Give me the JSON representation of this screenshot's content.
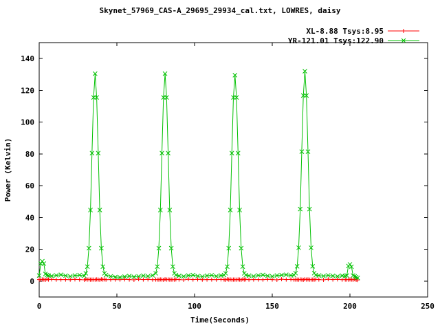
{
  "chart_data": {
    "type": "line",
    "title": "Skynet_57969_CAS-A_29695_29934_cal.txt, LOWRES, daisy",
    "xlabel": "Time(Seconds)",
    "ylabel": "Power (Kelvin)",
    "xlim": [
      0,
      250
    ],
    "ylim": [
      -10,
      150
    ],
    "x_ticks": [
      0,
      50,
      100,
      150,
      200,
      250
    ],
    "y_ticks": [
      0,
      20,
      40,
      60,
      80,
      100,
      120,
      140
    ],
    "grid": false,
    "legend_position": "top-right",
    "colors": {
      "background": "#ffffff",
      "border": "#000000",
      "text": "#000000"
    },
    "x": [
      0,
      1,
      2,
      3,
      4,
      5,
      6,
      8,
      11,
      14,
      17,
      20,
      23,
      26,
      29,
      30,
      31,
      32,
      33,
      34,
      35,
      36,
      37,
      38,
      39,
      40,
      41,
      42,
      43,
      46,
      49,
      52,
      55,
      58,
      61,
      64,
      67,
      70,
      73,
      75,
      76,
      77,
      78,
      79,
      80,
      81,
      82,
      83,
      84,
      85,
      86,
      87,
      88,
      90,
      93,
      96,
      99,
      102,
      105,
      108,
      111,
      114,
      117,
      119,
      120,
      121,
      122,
      123,
      124,
      125,
      126,
      127,
      128,
      129,
      130,
      131,
      132,
      133,
      135,
      138,
      141,
      144,
      147,
      150,
      153,
      156,
      159,
      162,
      164,
      165,
      166,
      167,
      168,
      169,
      170,
      171,
      172,
      173,
      174,
      175,
      176,
      177,
      178,
      180,
      183,
      186,
      189,
      192,
      195,
      197,
      198,
      199,
      200,
      201,
      202,
      203,
      204,
      205
    ],
    "series": [
      {
        "name": "XL-8.88 Tsys:8.95",
        "color": "#ff0000",
        "marker": "plus",
        "values": [
          1.0,
          0.9,
          1.1,
          1.0,
          0.8,
          1.2,
          1.0,
          1.1,
          0.9,
          1.0,
          1.0,
          0.9,
          1.1,
          1.0,
          0.8,
          1.2,
          1.0,
          1.1,
          0.9,
          1.0,
          1.0,
          0.9,
          1.1,
          1.0,
          0.8,
          1.2,
          1.0,
          1.1,
          0.9,
          1.0,
          1.0,
          0.9,
          1.1,
          1.0,
          0.8,
          1.2,
          1.0,
          1.1,
          0.9,
          1.0,
          1.0,
          0.9,
          1.1,
          1.0,
          0.8,
          1.2,
          1.0,
          1.1,
          0.9,
          1.0,
          1.0,
          0.9,
          1.1,
          1.0,
          0.8,
          1.2,
          1.0,
          1.1,
          0.9,
          1.0,
          1.0,
          0.9,
          1.1,
          1.0,
          0.8,
          1.2,
          1.0,
          1.1,
          0.9,
          1.0,
          1.0,
          0.9,
          1.1,
          1.0,
          0.8,
          1.2,
          1.0,
          1.1,
          0.9,
          1.0,
          1.0,
          0.9,
          1.1,
          1.0,
          0.8,
          1.2,
          1.0,
          1.1,
          0.9,
          1.0,
          1.0,
          0.9,
          1.1,
          1.0,
          0.8,
          1.2,
          1.0,
          1.1,
          0.9,
          1.0,
          1.0,
          0.9,
          1.1,
          1.0,
          0.8,
          1.2,
          1.0,
          1.1,
          0.9,
          1.0,
          1.0,
          0.9,
          1.1,
          1.0,
          0.8,
          1.2,
          0.8,
          0.7
        ]
      },
      {
        "name": "YR-121.01 Tsys:122.90",
        "color": "#00c000",
        "marker": "cross",
        "values": [
          3.5,
          11.0,
          12.5,
          11.0,
          4.5,
          3.8,
          3.5,
          3.2,
          3.6,
          4.0,
          3.4,
          3.0,
          3.5,
          3.8,
          3.3,
          4.9,
          9.1,
          20.7,
          44.7,
          80.5,
          115.5,
          130.5,
          115.5,
          80.5,
          44.7,
          20.7,
          9.1,
          4.9,
          3.8,
          3.0,
          2.6,
          2.4,
          2.8,
          3.2,
          2.7,
          3.0,
          3.4,
          3.1,
          3.6,
          4.9,
          9.1,
          20.7,
          44.7,
          80.5,
          115.5,
          130.5,
          115.5,
          80.5,
          44.7,
          20.7,
          9.1,
          4.9,
          3.8,
          3.3,
          3.0,
          3.5,
          3.8,
          3.2,
          2.9,
          3.4,
          3.7,
          3.1,
          3.5,
          3.8,
          4.9,
          9.1,
          20.7,
          44.7,
          80.5,
          115.5,
          129.5,
          115.5,
          80.5,
          44.7,
          20.7,
          9.1,
          4.9,
          3.8,
          3.4,
          3.1,
          3.6,
          3.9,
          3.3,
          3.0,
          3.5,
          3.8,
          4.0,
          3.6,
          3.8,
          5.0,
          9.3,
          21.0,
          45.3,
          81.4,
          116.7,
          132.0,
          116.7,
          81.4,
          45.3,
          21.0,
          9.3,
          5.0,
          3.8,
          3.5,
          3.2,
          3.6,
          3.3,
          3.0,
          3.4,
          3.2,
          3.5,
          9.5,
          10.5,
          9.0,
          3.5,
          3.0,
          2.5,
          2.0
        ]
      }
    ]
  }
}
